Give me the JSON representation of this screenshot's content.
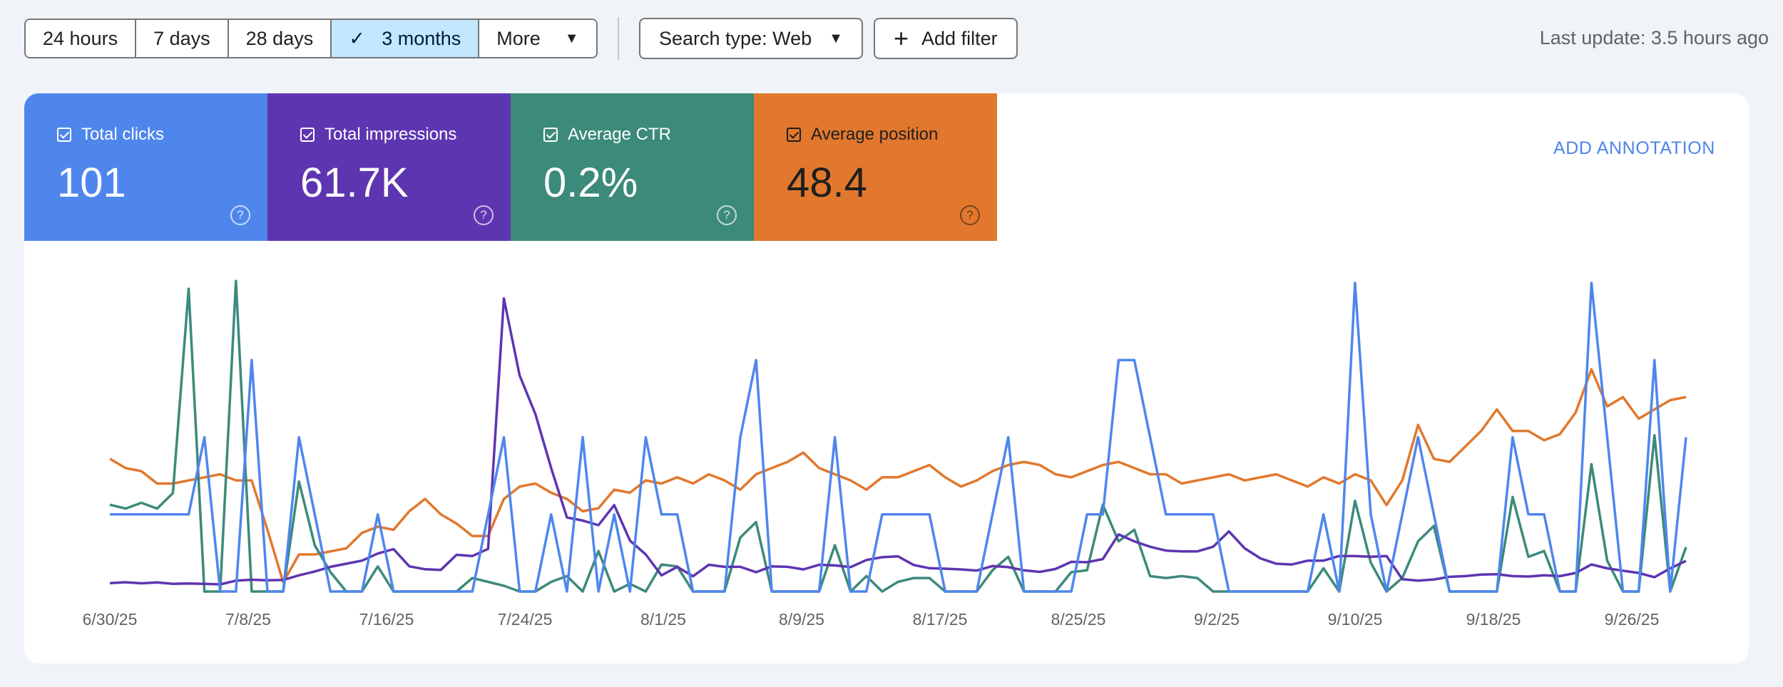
{
  "toolbar": {
    "ranges": [
      {
        "label": "24 hours",
        "active": false
      },
      {
        "label": "7 days",
        "active": false
      },
      {
        "label": "28 days",
        "active": false
      },
      {
        "label": "3 months",
        "active": true
      },
      {
        "label": "More",
        "active": false,
        "dropdown": true
      }
    ],
    "search_type_label": "Search type: Web",
    "add_filter_label": "Add filter",
    "last_update": "Last update: 3.5 hours ago"
  },
  "metrics": [
    {
      "label": "Total clicks",
      "value": "101",
      "color": "#4f86ec"
    },
    {
      "label": "Total impressions",
      "value": "61.7K",
      "color": "#5e35b1"
    },
    {
      "label": "Average CTR",
      "value": "0.2%",
      "color": "#3c8a7a"
    },
    {
      "label": "Average position",
      "value": "48.4",
      "color": "#e1782e"
    }
  ],
  "add_annotation": "ADD ANNOTATION",
  "chart_data": {
    "type": "line",
    "x_tick_labels": [
      "6/30/25",
      "7/8/25",
      "7/16/25",
      "7/24/25",
      "8/1/25",
      "8/9/25",
      "8/17/25",
      "8/25/25",
      "9/2/25",
      "9/10/25",
      "9/18/25",
      "9/26/25"
    ],
    "series": [
      {
        "name": "Total clicks",
        "color": "#4f86ec",
        "scale": [
          0,
          4
        ],
        "values": [
          1,
          1,
          1,
          1,
          1,
          1,
          2,
          0,
          0,
          3,
          0,
          0,
          2,
          1,
          0,
          0,
          0,
          1,
          0,
          0,
          0,
          0,
          0,
          0,
          1,
          2,
          0,
          0,
          1,
          0,
          2,
          0,
          1,
          0,
          2,
          1,
          1,
          0,
          0,
          0,
          2,
          3,
          0,
          0,
          0,
          0,
          2,
          0,
          0,
          1,
          1,
          1,
          1,
          0,
          0,
          0,
          1,
          2,
          0,
          0,
          0,
          0,
          1,
          1,
          3,
          3,
          2,
          1,
          1,
          1,
          1,
          0,
          0,
          0,
          0,
          0,
          0,
          1,
          0,
          4,
          1,
          0,
          1,
          2,
          1,
          0,
          0,
          0,
          0,
          2,
          1,
          1,
          0,
          0,
          4,
          2,
          0,
          0,
          3,
          0,
          2
        ]
      },
      {
        "name": "Total impressions",
        "color": "#5e35b1",
        "scale": [
          0,
          2000
        ],
        "values": [
          54,
          60,
          53,
          59,
          50,
          52,
          50,
          46,
          70,
          76,
          73,
          75,
          105,
          130,
          160,
          180,
          200,
          246,
          275,
          163,
          144,
          140,
          238,
          230,
          276,
          1900,
          1400,
          1150,
          800,
          480,
          460,
          430,
          560,
          330,
          240,
          105,
          160,
          99,
          173,
          160,
          160,
          125,
          163,
          160,
          143,
          173,
          169,
          158,
          204,
          222,
          228,
          172,
          151,
          148,
          143,
          136,
          165,
          158,
          137,
          127,
          146,
          192,
          190,
          210,
          370,
          325,
          290,
          265,
          260,
          260,
          290,
          390,
          280,
          215,
          180,
          175,
          200,
          200,
          230,
          230,
          225,
          230,
          80,
          70,
          78,
          95,
          100,
          110,
          112,
          100,
          97,
          105,
          100,
          120,
          175,
          150,
          135,
          120,
          93,
          150,
          198
        ]
      },
      {
        "name": "Average CTR",
        "color": "#3c8a7a",
        "scale": [
          0,
          0.016
        ],
        "values": [
          0.0045,
          0.0043,
          0.0046,
          0.0043,
          0.0051,
          0.0157,
          0,
          0,
          0.0161,
          0,
          0,
          0,
          0.0057,
          0.0024,
          0.001,
          0,
          0,
          0.0013,
          0,
          0,
          0,
          0,
          0,
          0.0007,
          0.0005,
          0.0003,
          0,
          0,
          0.0005,
          0.0008,
          0,
          0.0021,
          0,
          0.0004,
          0,
          0.0014,
          0.0013,
          0,
          0,
          0,
          0.0028,
          0.0036,
          0,
          0,
          0,
          0,
          0.0024,
          0,
          0.0008,
          0,
          0.0005,
          0.0007,
          0.0007,
          0,
          0,
          0,
          0.0011,
          0.0018,
          0,
          0,
          0,
          0.001,
          0.0011,
          0.0045,
          0.0026,
          0.0032,
          0.0008,
          0.0007,
          0.0008,
          0.0007,
          0,
          0,
          0,
          0,
          0,
          0,
          0,
          0.0012,
          0,
          0.0047,
          0.0015,
          0,
          0.0007,
          0.0026,
          0.0034,
          0,
          0,
          0,
          0,
          0.0049,
          0.0018,
          0.0021,
          0,
          0,
          0.0066,
          0.0016,
          0,
          0,
          0.0081,
          0,
          0.0023
        ]
      },
      {
        "name": "Average position",
        "color": "#e1782e",
        "scale": [
          0,
          100
        ],
        "values": [
          43,
          40,
          39,
          35,
          35,
          36,
          37,
          38,
          36,
          36,
          20,
          3,
          12,
          12,
          13,
          14,
          19,
          21,
          20,
          26,
          30,
          25,
          22,
          18,
          18,
          30,
          34,
          35,
          32,
          30,
          26,
          27,
          33,
          32,
          36,
          35,
          37,
          35,
          38,
          36,
          33,
          38,
          40,
          42,
          45,
          40,
          38,
          36,
          33,
          37,
          37,
          39,
          41,
          37,
          34,
          36,
          39,
          41,
          42,
          41,
          38,
          37,
          39,
          41,
          42,
          40,
          38,
          38,
          35,
          36,
          37,
          38,
          36,
          37,
          38,
          36,
          34,
          37,
          35,
          38,
          36,
          28,
          36,
          54,
          43,
          42,
          47,
          52,
          59,
          52,
          52,
          49,
          51,
          58,
          72,
          60,
          63,
          56,
          59,
          62,
          63
        ]
      }
    ]
  }
}
